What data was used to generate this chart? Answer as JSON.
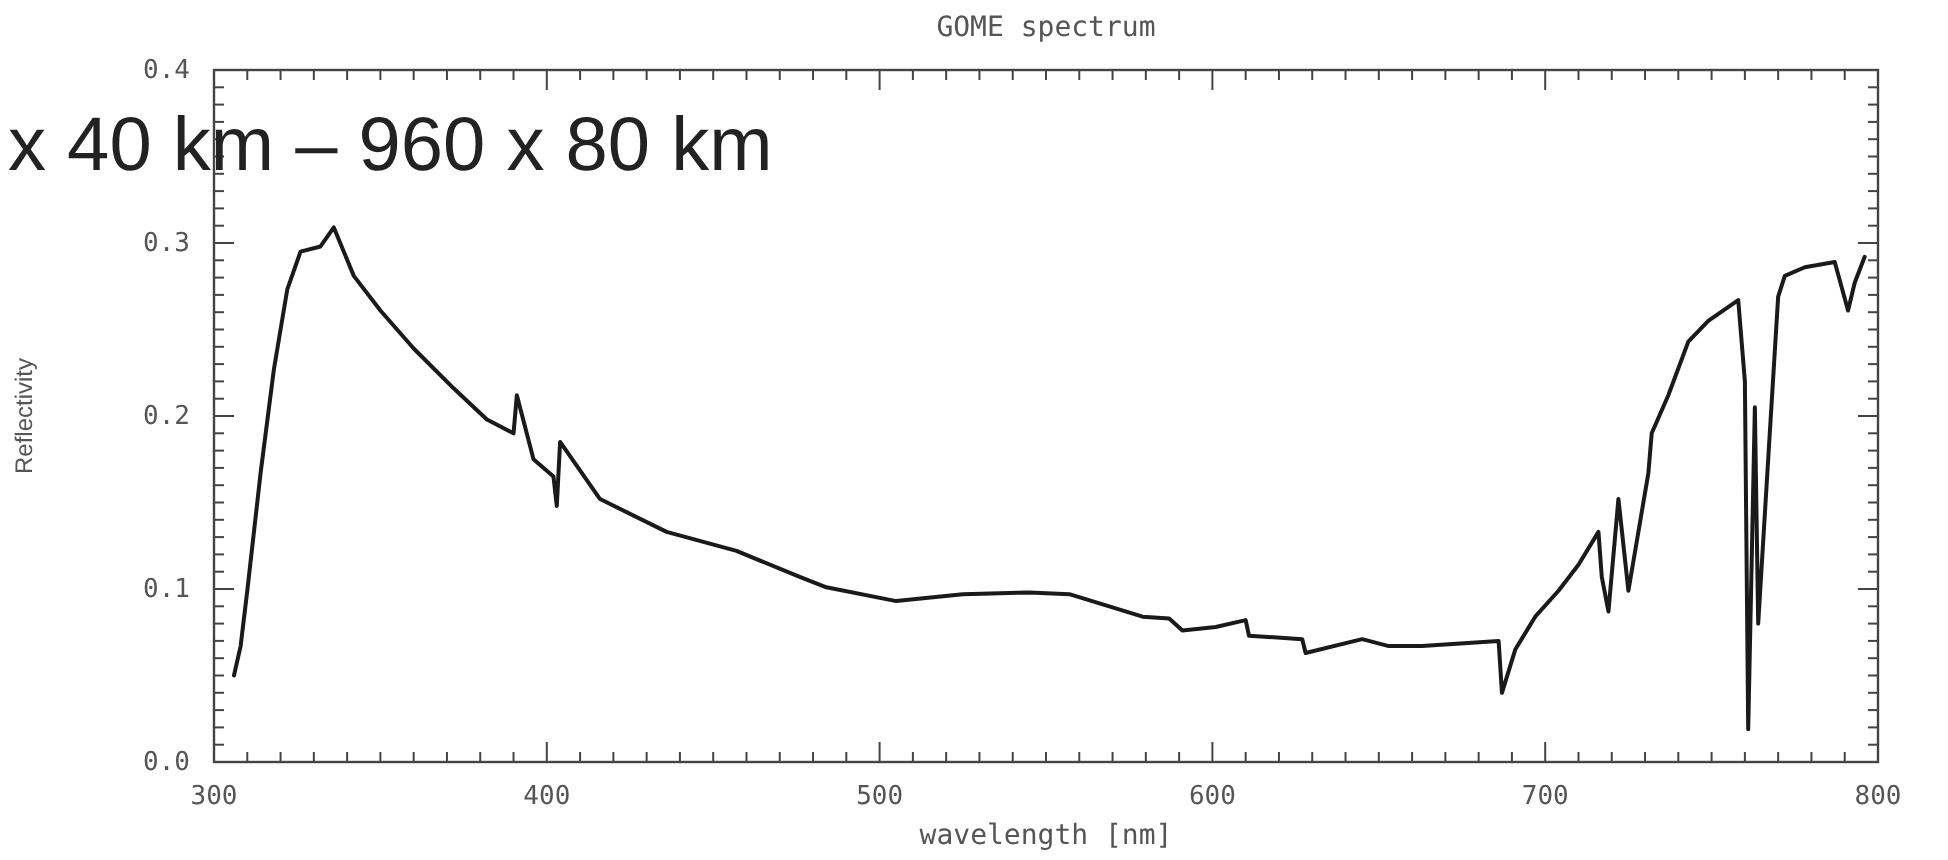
{
  "chart_data": {
    "type": "line",
    "title": "GOME spectrum",
    "xlabel": "wavelength [nm]",
    "ylabel": "Reflectivity",
    "annotations": [
      "x 40 km – 960 x 80 km"
    ],
    "xlim": [
      300,
      800
    ],
    "ylim": [
      0,
      0.4
    ],
    "xticks": [
      300,
      {
        "value": 310,
        "label": null
      },
      {
        "value": 320,
        "label": null
      },
      {
        "value": 330,
        "label": null
      },
      {
        "value": 340,
        "label": null
      },
      {
        "value": 350,
        "label": null
      },
      {
        "value": 360,
        "label": null
      },
      {
        "value": 370,
        "label": null
      },
      {
        "value": 380,
        "label": null
      },
      {
        "value": 390,
        "label": null
      },
      400,
      {
        "value": 410,
        "label": null
      },
      {
        "value": 420,
        "label": null
      },
      {
        "value": 430,
        "label": null
      },
      {
        "value": 440,
        "label": null
      },
      {
        "value": 450,
        "label": null
      },
      {
        "value": 460,
        "label": null
      },
      {
        "value": 470,
        "label": null
      },
      {
        "value": 480,
        "label": null
      },
      {
        "value": 490,
        "label": null
      },
      500,
      {
        "value": 510,
        "label": null
      },
      {
        "value": 520,
        "label": null
      },
      {
        "value": 530,
        "label": null
      },
      {
        "value": 540,
        "label": null
      },
      {
        "value": 550,
        "label": null
      },
      {
        "value": 560,
        "label": null
      },
      {
        "value": 570,
        "label": null
      },
      {
        "value": 580,
        "label": null
      },
      {
        "value": 590,
        "label": null
      },
      600,
      {
        "value": 610,
        "label": null
      },
      {
        "value": 620,
        "label": null
      },
      {
        "value": 630,
        "label": null
      },
      {
        "value": 640,
        "label": null
      },
      {
        "value": 650,
        "label": null
      },
      {
        "value": 660,
        "label": null
      },
      {
        "value": 670,
        "label": null
      },
      {
        "value": 680,
        "label": null
      },
      {
        "value": 690,
        "label": null
      },
      700,
      {
        "value": 710,
        "label": null
      },
      {
        "value": 720,
        "label": null
      },
      {
        "value": 730,
        "label": null
      },
      {
        "value": 740,
        "label": null
      },
      {
        "value": 750,
        "label": null
      },
      {
        "value": 760,
        "label": null
      },
      {
        "value": 770,
        "label": null
      },
      {
        "value": 780,
        "label": null
      },
      {
        "value": 790,
        "label": null
      },
      800
    ],
    "yticks": [
      {
        "value": 0,
        "label": "0.0"
      },
      {
        "value": 0.01,
        "label": null
      },
      {
        "value": 0.02,
        "label": null
      },
      {
        "value": 0.03,
        "label": null
      },
      {
        "value": 0.04,
        "label": null
      },
      {
        "value": 0.05,
        "label": null
      },
      {
        "value": 0.06,
        "label": null
      },
      {
        "value": 0.07,
        "label": null
      },
      {
        "value": 0.08,
        "label": null
      },
      {
        "value": 0.09,
        "label": null
      },
      0.1,
      {
        "value": 0.11,
        "label": null
      },
      {
        "value": 0.12,
        "label": null
      },
      {
        "value": 0.13,
        "label": null
      },
      {
        "value": 0.14,
        "label": null
      },
      {
        "value": 0.15,
        "label": null
      },
      {
        "value": 0.16,
        "label": null
      },
      {
        "value": 0.17,
        "label": null
      },
      {
        "value": 0.18,
        "label": null
      },
      {
        "value": 0.19,
        "label": null
      },
      0.2,
      {
        "value": 0.21,
        "label": null
      },
      {
        "value": 0.22,
        "label": null
      },
      {
        "value": 0.23,
        "label": null
      },
      {
        "value": 0.24,
        "label": null
      },
      {
        "value": 0.25,
        "label": null
      },
      {
        "value": 0.26,
        "label": null
      },
      {
        "value": 0.27,
        "label": null
      },
      {
        "value": 0.28,
        "label": null
      },
      {
        "value": 0.29,
        "label": null
      },
      0.3,
      {
        "value": 0.31,
        "label": null
      },
      {
        "value": 0.32,
        "label": null
      },
      {
        "value": 0.33,
        "label": null
      },
      {
        "value": 0.34,
        "label": null
      },
      {
        "value": 0.35,
        "label": null
      },
      {
        "value": 0.36,
        "label": null
      },
      {
        "value": 0.37,
        "label": null
      },
      {
        "value": 0.38,
        "label": null
      },
      {
        "value": 0.39,
        "label": null
      },
      0.4
    ],
    "grid": false,
    "marker": "none",
    "line_style": "solid",
    "series": [
      {
        "color": "#1a1a1a",
        "x": [
          306,
          308,
          310,
          314,
          318,
          322,
          326,
          332,
          336,
          342,
          350,
          360,
          372,
          382,
          390,
          391,
          396,
          402,
          403,
          404,
          416,
          436,
          457,
          476,
          484,
          505,
          525,
          545,
          557,
          569,
          579,
          587,
          591,
          601,
          610,
          611,
          627,
          628,
          645,
          653,
          663,
          686,
          687,
          691,
          697,
          704,
          710,
          716,
          717,
          719,
          722,
          725,
          731,
          732,
          737,
          743,
          749,
          758,
          760,
          761,
          763,
          764,
          767,
          770,
          772,
          778,
          787,
          791,
          793,
          796
        ],
        "values": [
          0.05,
          0.067,
          0.099,
          0.167,
          0.227,
          0.273,
          0.295,
          0.298,
          0.309,
          0.281,
          0.261,
          0.239,
          0.216,
          0.198,
          0.19,
          0.212,
          0.175,
          0.165,
          0.148,
          0.185,
          0.152,
          0.133,
          0.122,
          0.107,
          0.101,
          0.093,
          0.097,
          0.098,
          0.097,
          0.09,
          0.084,
          0.083,
          0.076,
          0.078,
          0.082,
          0.073,
          0.071,
          0.063,
          0.071,
          0.067,
          0.067,
          0.07,
          0.04,
          0.065,
          0.084,
          0.099,
          0.114,
          0.133,
          0.107,
          0.087,
          0.152,
          0.099,
          0.167,
          0.19,
          0.212,
          0.243,
          0.255,
          0.267,
          0.22,
          0.019,
          0.205,
          0.08,
          0.175,
          0.269,
          0.281,
          0.286,
          0.289,
          0.261,
          0.277,
          0.292
        ]
      }
    ]
  }
}
